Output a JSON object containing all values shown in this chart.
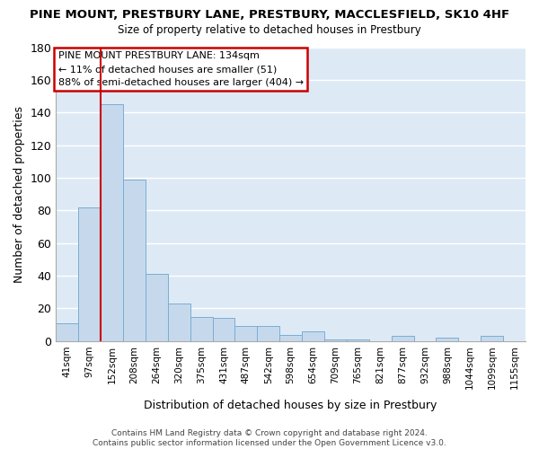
{
  "title": "PINE MOUNT, PRESTBURY LANE, PRESTBURY, MACCLESFIELD, SK10 4HF",
  "subtitle": "Size of property relative to detached houses in Prestbury",
  "xlabel": "Distribution of detached houses by size in Prestbury",
  "ylabel": "Number of detached properties",
  "bar_labels": [
    "41sqm",
    "97sqm",
    "152sqm",
    "208sqm",
    "264sqm",
    "320sqm",
    "375sqm",
    "431sqm",
    "487sqm",
    "542sqm",
    "598sqm",
    "654sqm",
    "709sqm",
    "765sqm",
    "821sqm",
    "877sqm",
    "932sqm",
    "988sqm",
    "1044sqm",
    "1099sqm",
    "1155sqm"
  ],
  "bar_values": [
    11,
    82,
    145,
    99,
    41,
    23,
    15,
    14,
    9,
    9,
    4,
    6,
    1,
    1,
    0,
    3,
    0,
    2,
    0,
    3,
    0
  ],
  "bar_color": "#c6d9ec",
  "bar_edge_color": "#7aadd4",
  "grid_color": "#c0cfe0",
  "vline_x": 2,
  "vline_color": "#cc0000",
  "ylim": [
    0,
    180
  ],
  "yticks": [
    0,
    20,
    40,
    60,
    80,
    100,
    120,
    140,
    160,
    180
  ],
  "annotation_title": "PINE MOUNT PRESTBURY LANE: 134sqm",
  "annotation_line1": "← 11% of detached houses are smaller (51)",
  "annotation_line2": "88% of semi-detached houses are larger (404) →",
  "annotation_box_color": "white",
  "annotation_box_edge": "#cc0000",
  "footer1": "Contains HM Land Registry data © Crown copyright and database right 2024.",
  "footer2": "Contains public sector information licensed under the Open Government Licence v3.0.",
  "bg_color": "#ffffff",
  "plot_bg_color": "#ddeaf5"
}
